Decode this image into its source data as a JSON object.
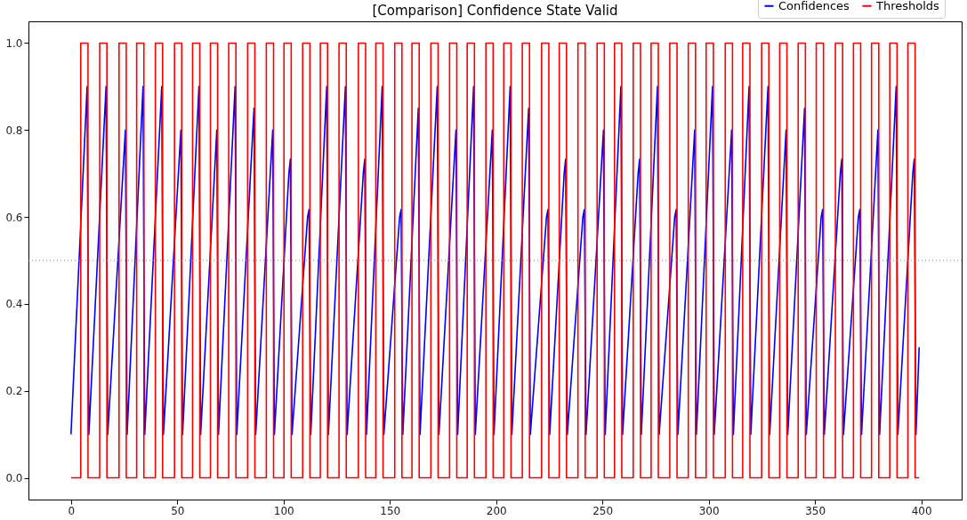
{
  "chart_data": {
    "type": "line",
    "title": "[Comparison] Confidence State Valid",
    "xlim": [
      -20,
      419
    ],
    "ylim": [
      -0.05,
      1.05
    ],
    "xticks": [
      0,
      50,
      100,
      150,
      200,
      250,
      300,
      350,
      400
    ],
    "yticks": [
      {
        "value": 0,
        "label": "0.0"
      },
      {
        "value": 0.2,
        "label": "0.2"
      },
      {
        "value": 0.4,
        "label": "0.4"
      },
      {
        "value": 0.6,
        "label": "0.6"
      },
      {
        "value": 0.8,
        "label": "0.8"
      },
      {
        "value": 1,
        "label": "1.0"
      }
    ],
    "grid": false,
    "legend": "top right",
    "ref_lines": [
      {
        "axis": "y",
        "value": 0.5,
        "color": "#808080",
        "line_style": "dotted"
      }
    ],
    "series": [
      {
        "name": "Confidences",
        "color": "#0000ff",
        "x": [
          0,
          7.6,
          8.4,
          16.5,
          17.3,
          25.6,
          26.4,
          33.9,
          34.7,
          42.7,
          43.5,
          51.7,
          52.5,
          60.2,
          61.0,
          68.6,
          69.4,
          77.2,
          78.0,
          86.1,
          86.9,
          94.9,
          95.7,
          102.5,
          103.2,
          104.0,
          111.3,
          112.0,
          112.8,
          120.3,
          121.1,
          129.1,
          129.9,
          137.5,
          138.2,
          139.0,
          146.4,
          147.2,
          154.6,
          155.3,
          156.1,
          163.4,
          164.2,
          172.3,
          173.1,
          181.1,
          181.9,
          189.4,
          190.2,
          198.2,
          199.0,
          206.6,
          207.4,
          215.3,
          216.1,
          223.7,
          224.4,
          225.2,
          232.0,
          232.7,
          233.5,
          240.8,
          241.5,
          242.3,
          250.5,
          251.3,
          258.7,
          259.5,
          266.8,
          267.5,
          268.3,
          275.9,
          276.7,
          284.0,
          284.7,
          285.5,
          293.4,
          294.2,
          301.8,
          302.6,
          310.8,
          311.6,
          319.0,
          319.8,
          327.9,
          328.7,
          336.4,
          337.2,
          345.1,
          345.9,
          352.9,
          353.6,
          354.4,
          361.9,
          362.6,
          363.4,
          370.4,
          371.1,
          371.9,
          379.6,
          380.4,
          388.2,
          389.0,
          396.0,
          396.7,
          397.5,
          399
        ],
        "values": [
          0.1,
          0.9,
          0.1,
          0.9,
          0.1,
          0.8,
          0.1,
          0.9,
          0.1,
          0.9,
          0.1,
          0.8,
          0.1,
          0.9,
          0.1,
          0.8,
          0.1,
          0.9,
          0.1,
          0.85,
          0.1,
          0.8,
          0.1,
          0.7,
          0.733,
          0.1,
          0.6,
          0.617,
          0.1,
          0.9,
          0.1,
          0.9,
          0.1,
          0.7,
          0.733,
          0.1,
          0.9,
          0.1,
          0.6,
          0.617,
          0.1,
          0.85,
          0.1,
          0.9,
          0.1,
          0.8,
          0.1,
          0.9,
          0.1,
          0.8,
          0.1,
          0.9,
          0.1,
          0.85,
          0.1,
          0.6,
          0.617,
          0.1,
          0.7,
          0.733,
          0.1,
          0.6,
          0.617,
          0.1,
          0.8,
          0.1,
          0.9,
          0.1,
          0.7,
          0.733,
          0.1,
          0.9,
          0.1,
          0.6,
          0.617,
          0.1,
          0.8,
          0.1,
          0.9,
          0.1,
          0.8,
          0.1,
          0.9,
          0.1,
          0.9,
          0.1,
          0.8,
          0.1,
          0.85,
          0.1,
          0.6,
          0.617,
          0.1,
          0.7,
          0.733,
          0.1,
          0.6,
          0.617,
          0.1,
          0.8,
          0.1,
          0.9,
          0.1,
          0.7,
          0.733,
          0.1,
          0.3
        ]
      },
      {
        "name": "Thresholds",
        "color": "#ff0000",
        "x": [
          0,
          4.6,
          4.6,
          8.0,
          8.0,
          13.5,
          13.5,
          16.9,
          16.9,
          22.6,
          22.6,
          26.0,
          26.0,
          30.9,
          30.9,
          34.3,
          34.3,
          39.7,
          39.7,
          43.1,
          43.1,
          48.7,
          48.7,
          52.1,
          52.1,
          57.2,
          57.2,
          60.6,
          60.6,
          65.6,
          65.6,
          69.0,
          69.0,
          74.2,
          74.2,
          77.6,
          77.6,
          83.1,
          83.1,
          86.5,
          86.5,
          91.9,
          91.9,
          95.3,
          95.3,
          100.2,
          100.2,
          103.6,
          103.6,
          109.0,
          109.0,
          112.4,
          112.4,
          117.3,
          117.3,
          120.7,
          120.7,
          126.1,
          126.1,
          129.5,
          129.5,
          135.2,
          135.2,
          138.6,
          138.6,
          143.4,
          143.4,
          146.8,
          146.8,
          152.3,
          152.3,
          155.7,
          155.7,
          160.4,
          160.4,
          163.8,
          163.8,
          169.3,
          169.3,
          172.7,
          172.7,
          178.1,
          178.1,
          181.5,
          181.5,
          186.4,
          186.4,
          189.8,
          189.8,
          195.2,
          195.2,
          198.6,
          198.6,
          203.6,
          203.6,
          207.0,
          207.0,
          212.3,
          212.3,
          215.7,
          215.7,
          221.4,
          221.4,
          224.8,
          224.8,
          229.7,
          229.7,
          233.1,
          233.1,
          238.5,
          238.5,
          241.9,
          241.9,
          247.5,
          247.5,
          250.9,
          250.9,
          255.7,
          255.7,
          259.1,
          259.1,
          264.5,
          264.5,
          267.9,
          267.9,
          272.9,
          272.9,
          276.3,
          276.3,
          281.7,
          281.7,
          285.1,
          285.1,
          290.4,
          290.4,
          293.8,
          293.8,
          298.8,
          298.8,
          302.2,
          302.2,
          307.8,
          307.8,
          311.2,
          311.2,
          316.0,
          316.0,
          319.4,
          319.4,
          324.9,
          324.9,
          328.3,
          328.3,
          333.4,
          333.4,
          336.8,
          336.8,
          342.1,
          342.1,
          345.5,
          345.5,
          350.6,
          350.6,
          354.0,
          354.0,
          359.6,
          359.6,
          363.0,
          363.0,
          368.1,
          368.1,
          371.5,
          371.5,
          376.6,
          376.6,
          380.0,
          380.0,
          385.2,
          385.2,
          388.6,
          388.6,
          393.7,
          393.7,
          397.1,
          397.1,
          399
        ],
        "values": [
          0,
          0,
          1,
          1,
          0,
          0,
          1,
          1,
          0,
          0,
          1,
          1,
          0,
          0,
          1,
          1,
          0,
          0,
          1,
          1,
          0,
          0,
          1,
          1,
          0,
          0,
          1,
          1,
          0,
          0,
          1,
          1,
          0,
          0,
          1,
          1,
          0,
          0,
          1,
          1,
          0,
          0,
          1,
          1,
          0,
          0,
          1,
          1,
          0,
          0,
          1,
          1,
          0,
          0,
          1,
          1,
          0,
          0,
          1,
          1,
          0,
          0,
          1,
          1,
          0,
          0,
          1,
          1,
          0,
          0,
          1,
          1,
          0,
          0,
          1,
          1,
          0,
          0,
          1,
          1,
          0,
          0,
          1,
          1,
          0,
          0,
          1,
          1,
          0,
          0,
          1,
          1,
          0,
          0,
          1,
          1,
          0,
          0,
          1,
          1,
          0,
          0,
          1,
          1,
          0,
          0,
          1,
          1,
          0,
          0,
          1,
          1,
          0,
          0,
          1,
          1,
          0,
          0,
          1,
          1,
          0,
          0,
          1,
          1,
          0,
          0,
          1,
          1,
          0,
          0,
          1,
          1,
          0,
          0,
          1,
          1,
          0,
          0,
          1,
          1,
          0,
          0,
          1,
          1,
          0,
          0,
          1,
          1,
          0,
          0,
          1,
          1,
          0,
          0,
          1,
          1,
          0,
          0,
          1,
          1,
          0,
          0,
          1,
          1,
          0,
          0,
          1,
          1,
          0,
          0,
          1,
          1,
          0,
          0,
          1,
          1,
          0,
          0,
          1,
          1,
          0,
          0,
          1,
          1,
          0,
          0
        ]
      }
    ]
  }
}
